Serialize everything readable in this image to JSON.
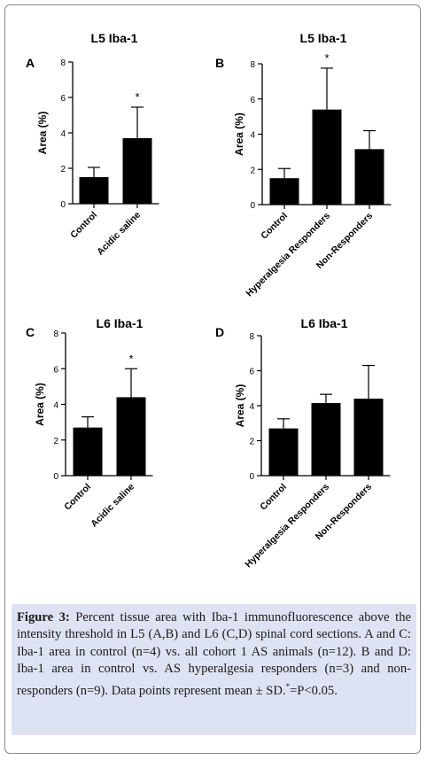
{
  "chart_data": [
    {
      "panel": "A",
      "type": "bar",
      "title": "L5 Iba-1",
      "ylabel": "Area (%)",
      "xlabel": "",
      "ylim": [
        0,
        8
      ],
      "yticks": [
        "0",
        "2",
        "4",
        "6",
        "8"
      ],
      "categories": [
        "Control",
        "Acidic saline"
      ],
      "values": [
        1.5,
        3.7
      ],
      "errors": [
        0.55,
        1.75
      ],
      "significance": [
        "",
        "*"
      ],
      "bar_color": "#000000",
      "grid": false
    },
    {
      "panel": "B",
      "type": "bar",
      "title": "L5 Iba-1",
      "ylabel": "Area (%)",
      "xlabel": "",
      "ylim": [
        0,
        8
      ],
      "yticks": [
        "0",
        "2",
        "4",
        "6",
        "8"
      ],
      "categories": [
        "Control",
        "Hyperalgesia Responders",
        "Non-Responders"
      ],
      "values": [
        1.5,
        5.4,
        3.15
      ],
      "errors": [
        0.55,
        2.35,
        1.05
      ],
      "significance": [
        "",
        "*",
        ""
      ],
      "bar_color": "#000000",
      "grid": false
    },
    {
      "panel": "C",
      "type": "bar",
      "title": "L6 Iba-1",
      "ylabel": "Area (%)",
      "xlabel": "",
      "ylim": [
        0,
        8
      ],
      "yticks": [
        "0",
        "2",
        "4",
        "6",
        "8"
      ],
      "categories": [
        "Control",
        "Acidic saline"
      ],
      "values": [
        2.7,
        4.4
      ],
      "errors": [
        0.6,
        1.6
      ],
      "significance": [
        "",
        "*"
      ],
      "bar_color": "#000000",
      "grid": false
    },
    {
      "panel": "D",
      "type": "bar",
      "title": "L6 Iba-1",
      "ylabel": "Area (%)",
      "xlabel": "",
      "ylim": [
        0,
        8
      ],
      "yticks": [
        "0",
        "2",
        "4",
        "6",
        "8"
      ],
      "categories": [
        "Control",
        "Hyperalgesia Responders",
        "Non-Responders"
      ],
      "values": [
        2.7,
        4.15,
        4.4
      ],
      "errors": [
        0.55,
        0.5,
        1.9
      ],
      "significance": [
        "",
        "",
        ""
      ],
      "bar_color": "#000000",
      "grid": false
    }
  ],
  "caption": {
    "label": "Figure 3:",
    "text": " Percent tissue area with Iba-1 immunofluorescence above the intensity threshold in L5 (A,B) and L6 (C,D) spinal cord sections. A and C: Iba-1 area in control (n=4) vs. all cohort 1 AS animals (n=12). B and D: Iba-1 area in control vs. AS hyperalgesia responders (n=3) and non-responders (n=9). Data points represent mean ± SD.",
    "sig_mark": "*",
    "sig_text": "=P<0.05."
  }
}
